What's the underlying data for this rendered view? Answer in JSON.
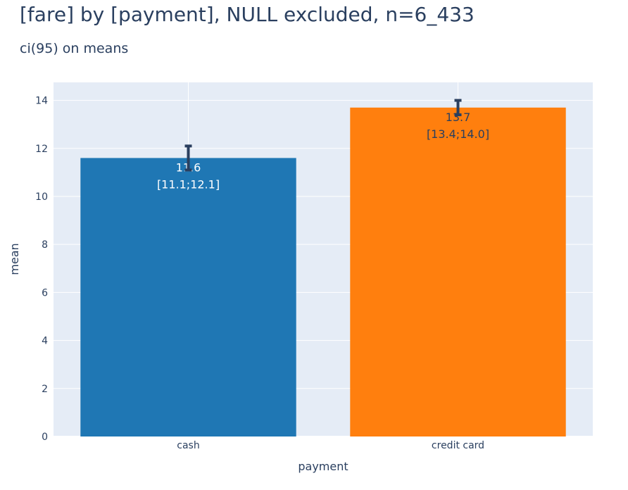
{
  "chart_data": {
    "type": "bar",
    "title": "[fare] by [payment], NULL excluded, n=6_433",
    "subtitle": "ci(95) on means",
    "xlabel": "payment",
    "ylabel": "mean",
    "categories": [
      "cash",
      "credit card"
    ],
    "values": [
      11.6,
      13.7
    ],
    "ci_low": [
      11.1,
      13.4
    ],
    "ci_high": [
      12.1,
      14.0
    ],
    "data_labels": [
      {
        "value": "11.6",
        "interval": "[11.1;12.1]"
      },
      {
        "value": "13.7",
        "interval": "[13.4;14.0]"
      }
    ],
    "ylim": [
      0,
      14.75
    ],
    "yticks": [
      0,
      2,
      4,
      6,
      8,
      10,
      12,
      14
    ],
    "grid": true,
    "legend": "none",
    "colors": {
      "bars": [
        "#1f77b4",
        "#ff7f0e"
      ],
      "label_text": [
        "#ffffff",
        "#2a3f5f"
      ],
      "error_bar": "#2a3f5f",
      "plot_background": "#e5ecf6",
      "grid": "#ffffff",
      "text": "#2a3f5f"
    }
  }
}
